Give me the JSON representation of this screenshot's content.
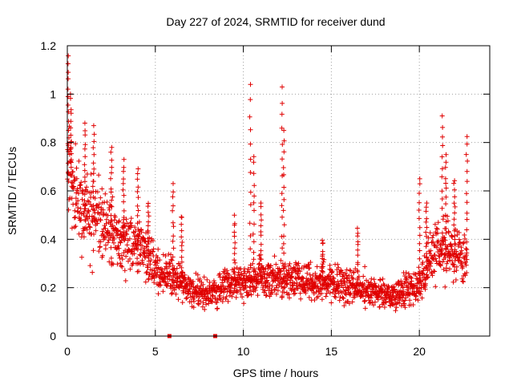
{
  "chart_data": {
    "type": "scatter",
    "title": "Day 227 of 2024, SRMTID for receiver dund",
    "xlabel": "GPS time / hours",
    "ylabel": "SRMTID / TECUs",
    "xlim": [
      0,
      24
    ],
    "ylim": [
      0,
      1.2
    ],
    "x_ticks": [
      0,
      5,
      10,
      15,
      20
    ],
    "x_tick_labels": [
      "0",
      "5",
      "10",
      "15",
      "20"
    ],
    "y_ticks": [
      0,
      0.2,
      0.4,
      0.6,
      0.8,
      1,
      1.2
    ],
    "y_tick_labels": [
      "0",
      "0.2",
      "0.4",
      "0.6",
      "0.8",
      "1",
      "1.2"
    ],
    "grid": true,
    "marker": "plus",
    "color": "#e00000",
    "trend": [
      {
        "x": 0.0,
        "y": 0.75
      },
      {
        "x": 0.3,
        "y": 0.58
      },
      {
        "x": 1.0,
        "y": 0.52
      },
      {
        "x": 2.0,
        "y": 0.45
      },
      {
        "x": 3.0,
        "y": 0.4
      },
      {
        "x": 4.0,
        "y": 0.36
      },
      {
        "x": 5.0,
        "y": 0.28
      },
      {
        "x": 6.0,
        "y": 0.24
      },
      {
        "x": 7.0,
        "y": 0.2
      },
      {
        "x": 8.0,
        "y": 0.17
      },
      {
        "x": 9.0,
        "y": 0.21
      },
      {
        "x": 10.0,
        "y": 0.22
      },
      {
        "x": 11.0,
        "y": 0.24
      },
      {
        "x": 12.0,
        "y": 0.24
      },
      {
        "x": 13.0,
        "y": 0.23
      },
      {
        "x": 14.0,
        "y": 0.22
      },
      {
        "x": 15.0,
        "y": 0.22
      },
      {
        "x": 16.0,
        "y": 0.2
      },
      {
        "x": 17.0,
        "y": 0.19
      },
      {
        "x": 18.0,
        "y": 0.17
      },
      {
        "x": 19.0,
        "y": 0.18
      },
      {
        "x": 20.0,
        "y": 0.22
      },
      {
        "x": 20.5,
        "y": 0.3
      },
      {
        "x": 21.0,
        "y": 0.34
      },
      {
        "x": 21.5,
        "y": 0.36
      },
      {
        "x": 22.0,
        "y": 0.34
      },
      {
        "x": 22.7,
        "y": 0.32
      }
    ],
    "spikes": [
      {
        "x": 0.05,
        "peak": 1.16
      },
      {
        "x": 0.2,
        "peak": 1.0
      },
      {
        "x": 1.0,
        "peak": 0.88
      },
      {
        "x": 1.5,
        "peak": 0.87
      },
      {
        "x": 2.5,
        "peak": 0.78
      },
      {
        "x": 3.2,
        "peak": 0.73
      },
      {
        "x": 4.0,
        "peak": 0.7
      },
      {
        "x": 4.6,
        "peak": 0.55
      },
      {
        "x": 6.0,
        "peak": 0.63
      },
      {
        "x": 6.5,
        "peak": 0.5
      },
      {
        "x": 9.5,
        "peak": 0.5
      },
      {
        "x": 10.4,
        "peak": 1.04
      },
      {
        "x": 10.6,
        "peak": 0.75
      },
      {
        "x": 11.0,
        "peak": 0.55
      },
      {
        "x": 12.2,
        "peak": 1.03
      },
      {
        "x": 12.3,
        "peak": 0.85
      },
      {
        "x": 14.5,
        "peak": 0.4
      },
      {
        "x": 16.5,
        "peak": 0.45
      },
      {
        "x": 20.0,
        "peak": 0.65
      },
      {
        "x": 20.4,
        "peak": 0.55
      },
      {
        "x": 21.3,
        "peak": 0.91
      },
      {
        "x": 21.5,
        "peak": 0.75
      },
      {
        "x": 22.0,
        "peak": 0.65
      },
      {
        "x": 22.7,
        "peak": 0.83
      }
    ],
    "zero_markers": [
      5.8,
      8.4
    ]
  }
}
